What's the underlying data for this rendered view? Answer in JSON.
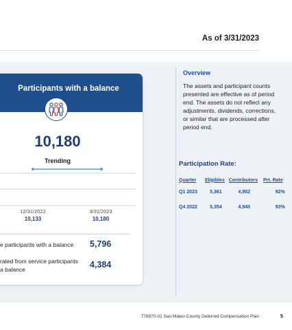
{
  "header": {
    "as_of": "As of 3/31/2023"
  },
  "card": {
    "title": "Participants with a balance",
    "total": "10,180",
    "trending_label": "Trending",
    "trend_points": [
      {
        "date": "12/31/2022",
        "value": "10,133"
      },
      {
        "date": "3/31/2023",
        "value": "10,180"
      }
    ],
    "stats": [
      {
        "label": "e participants with a balance",
        "value": "5,796"
      },
      {
        "label": "rated from service participants a balance",
        "value": "4,384"
      }
    ]
  },
  "overview": {
    "title": "Overview",
    "text": "The assets and participant counts presented are effective as of period end. The assets do not reflect any adjustments, dividends, corrections, or similar that are processed after period end."
  },
  "participation": {
    "title": "Participation Rate:",
    "headers": [
      "Quarter",
      "Eligibles",
      "Contributors",
      "Prt. Rate"
    ],
    "rows": [
      [
        "Q1 2023",
        "5,361",
        "4,952",
        "92%"
      ],
      [
        "Q4 2022",
        "5,354",
        "4,940",
        "93%"
      ]
    ]
  },
  "footer": {
    "text": "776970-01 San Mateo County Deferred Compensation Plan",
    "page": "5"
  },
  "colors": {
    "navy": "#1f4e8c",
    "dark_navy": "#1f3f6f",
    "band": "#eef2f6",
    "trend_line": "#5b9bd5"
  }
}
